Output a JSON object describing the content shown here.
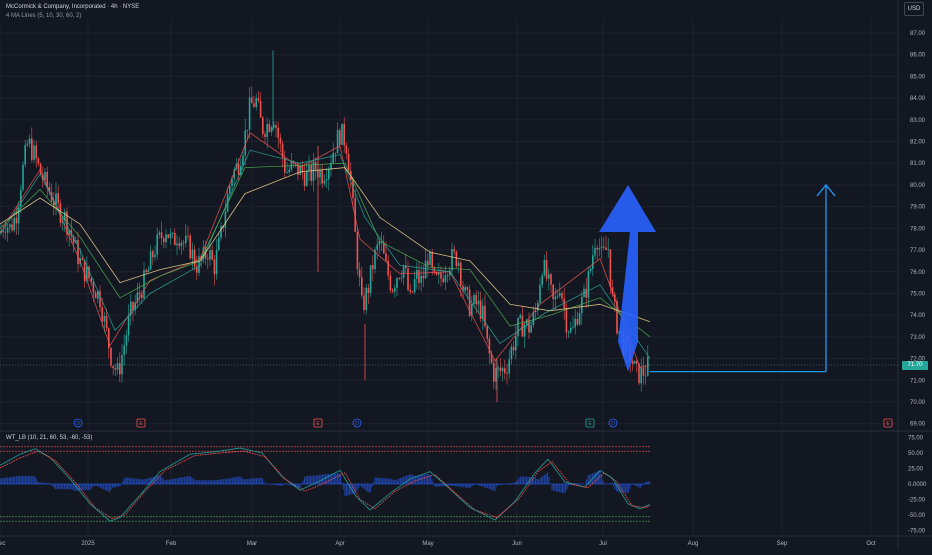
{
  "header": {
    "symbol_line": "McCormick & Company, Incorporated · 4h · NYSE",
    "indicator_line": "4 MA Lines (5, 10, 30, 60, 2)",
    "currency_button": "USD",
    "oscillator_line": "WT_LB (10, 21, 60, 53, -60, -53)"
  },
  "colors": {
    "background": "#131722",
    "up_candle": "#26a69a",
    "down_candle": "#ef5350",
    "arrow": "#2962ff",
    "target_line": "#2196f3",
    "ma_fast": "#ef5350",
    "ma_mid": "#26a69a",
    "ma_slow": "#f5d78e",
    "wt1": "#26a69a",
    "wt2": "#ef5350",
    "wt_hist": "#2962ff"
  },
  "last_price_label": "71.70",
  "chart_data": [
    {
      "type": "candlestick",
      "x_tick_labels": [
        "Dec",
        "2025",
        "Feb",
        "Mar",
        "Apr",
        "May",
        "Jun",
        "Jul",
        "Aug",
        "Sep",
        "Oct"
      ],
      "y_tick_labels": [
        "69.00",
        "70.00",
        "71.00",
        "72.00",
        "73.00",
        "74.00",
        "75.00",
        "76.00",
        "77.00",
        "78.00",
        "79.00",
        "80.00",
        "81.00",
        "82.00",
        "83.00",
        "84.00",
        "85.00",
        "86.00",
        "87.00"
      ],
      "ylim": [
        69,
        87.5
      ],
      "price_path": [
        [
          0,
          77.8
        ],
        [
          5,
          78.3
        ],
        [
          10,
          78.0
        ],
        [
          16,
          78.6
        ],
        [
          22,
          80.5
        ],
        [
          28,
          82.0
        ],
        [
          34,
          81.4
        ],
        [
          40,
          80.6
        ],
        [
          46,
          80.0
        ],
        [
          52,
          79.5
        ],
        [
          58,
          78.9
        ],
        [
          64,
          78.6
        ],
        [
          70,
          77.9
        ],
        [
          76,
          77.0
        ],
        [
          82,
          76.2
        ],
        [
          88,
          75.8
        ],
        [
          94,
          75.3
        ],
        [
          100,
          74.8
        ],
        [
          106,
          73.3
        ],
        [
          112,
          71.9
        ],
        [
          118,
          71.3
        ],
        [
          124,
          72.6
        ],
        [
          130,
          74.0
        ],
        [
          136,
          74.6
        ],
        [
          142,
          75.3
        ],
        [
          148,
          76.0
        ],
        [
          154,
          77.0
        ],
        [
          160,
          77.5
        ],
        [
          166,
          78.0
        ],
        [
          172,
          77.3
        ],
        [
          178,
          77.8
        ],
        [
          184,
          77.3
        ],
        [
          190,
          77.1
        ],
        [
          196,
          76.3
        ],
        [
          202,
          76.5
        ],
        [
          208,
          77.0
        ],
        [
          214,
          76.2
        ],
        [
          220,
          77.4
        ],
        [
          226,
          79.1
        ],
        [
          232,
          80.5
        ],
        [
          238,
          80.9
        ],
        [
          244,
          82.0
        ],
        [
          250,
          83.6
        ],
        [
          256,
          83.9
        ],
        [
          262,
          82.6
        ],
        [
          268,
          82.8
        ],
        [
          274,
          83.2
        ],
        [
          280,
          81.8
        ],
        [
          286,
          80.6
        ],
        [
          292,
          80.8
        ],
        [
          298,
          80.7
        ],
        [
          304,
          80.5
        ],
        [
          310,
          80.4
        ],
        [
          316,
          80.8
        ],
        [
          322,
          80.5
        ],
        [
          328,
          80.9
        ],
        [
          334,
          81.7
        ],
        [
          340,
          82.4
        ],
        [
          346,
          82.0
        ],
        [
          350,
          80.6
        ],
        [
          356,
          77.2
        ],
        [
          362,
          74.3
        ],
        [
          368,
          75.2
        ],
        [
          374,
          76.6
        ],
        [
          380,
          77.4
        ],
        [
          386,
          76.2
        ],
        [
          392,
          75.3
        ],
        [
          398,
          76.0
        ],
        [
          404,
          76.3
        ],
        [
          410,
          74.6
        ],
        [
          416,
          75.8
        ],
        [
          422,
          75.5
        ],
        [
          428,
          76.8
        ],
        [
          434,
          75.5
        ],
        [
          440,
          75.6
        ],
        [
          446,
          76.3
        ],
        [
          452,
          76.6
        ],
        [
          458,
          76.7
        ],
        [
          464,
          75.0
        ],
        [
          470,
          74.4
        ],
        [
          476,
          74.5
        ],
        [
          482,
          74.2
        ],
        [
          488,
          72.4
        ],
        [
          494,
          71.3
        ],
        [
          500,
          71.4
        ],
        [
          506,
          71.6
        ],
        [
          512,
          72.5
        ],
        [
          518,
          73.4
        ],
        [
          524,
          73.6
        ],
        [
          530,
          73.4
        ],
        [
          536,
          74.2
        ],
        [
          542,
          76.4
        ],
        [
          548,
          75.5
        ],
        [
          554,
          74.4
        ],
        [
          560,
          75.5
        ],
        [
          566,
          73.8
        ],
        [
          572,
          73.1
        ],
        [
          578,
          74.2
        ],
        [
          584,
          74.8
        ],
        [
          590,
          76.0
        ],
        [
          596,
          77.8
        ],
        [
          602,
          76.6
        ],
        [
          608,
          77.2
        ],
        [
          612,
          74.8
        ],
        [
          618,
          73.4
        ],
        [
          624,
          72.6
        ],
        [
          630,
          72.2
        ],
        [
          636,
          71.3
        ],
        [
          642,
          71.3
        ],
        [
          646,
          71.5
        ],
        [
          650,
          71.8
        ]
      ],
      "ma_fast": [
        [
          0,
          77.8
        ],
        [
          40,
          80.7
        ],
        [
          80,
          76.5
        ],
        [
          110,
          72.6
        ],
        [
          150,
          75.6
        ],
        [
          200,
          76.6
        ],
        [
          250,
          82.4
        ],
        [
          300,
          80.8
        ],
        [
          340,
          81.8
        ],
        [
          360,
          77.5
        ],
        [
          400,
          75.9
        ],
        [
          450,
          76.0
        ],
        [
          495,
          71.9
        ],
        [
          540,
          74.5
        ],
        [
          600,
          76.6
        ],
        [
          640,
          71.6
        ],
        [
          650,
          71.7
        ]
      ],
      "ma_mid": [
        [
          0,
          77.7
        ],
        [
          40,
          80.5
        ],
        [
          80,
          77.0
        ],
        [
          115,
          73.3
        ],
        [
          150,
          75.0
        ],
        [
          200,
          76.3
        ],
        [
          250,
          81.6
        ],
        [
          300,
          81.0
        ],
        [
          340,
          81.4
        ],
        [
          365,
          78.5
        ],
        [
          400,
          76.3
        ],
        [
          450,
          76.0
        ],
        [
          500,
          72.7
        ],
        [
          545,
          74.1
        ],
        [
          600,
          75.4
        ],
        [
          650,
          72.0
        ]
      ],
      "ma_slow": [
        [
          0,
          78.2
        ],
        [
          40,
          79.4
        ],
        [
          80,
          78.2
        ],
        [
          120,
          75.5
        ],
        [
          160,
          76.1
        ],
        [
          200,
          76.5
        ],
        [
          245,
          79.6
        ],
        [
          300,
          80.6
        ],
        [
          345,
          80.8
        ],
        [
          380,
          78.5
        ],
        [
          430,
          76.9
        ],
        [
          470,
          76.5
        ],
        [
          510,
          74.5
        ],
        [
          550,
          74.2
        ],
        [
          600,
          74.5
        ],
        [
          650,
          73.7
        ]
      ],
      "ma_green_long": [
        [
          0,
          78.0
        ],
        [
          40,
          79.8
        ],
        [
          80,
          77.6
        ],
        [
          120,
          74.8
        ],
        [
          160,
          75.8
        ],
        [
          200,
          76.5
        ],
        [
          245,
          80.8
        ],
        [
          300,
          80.9
        ],
        [
          345,
          81.0
        ],
        [
          380,
          77.4
        ],
        [
          430,
          76.2
        ],
        [
          470,
          76.1
        ],
        [
          510,
          73.5
        ],
        [
          550,
          74.0
        ],
        [
          600,
          74.8
        ],
        [
          650,
          73.0
        ]
      ],
      "arrow_target_price": 80.0,
      "arrow_base_price": 71.4,
      "target_base_price": 71.4,
      "event_markers": [
        {
          "x": 78,
          "label": "D"
        },
        {
          "x": 141,
          "label": "E"
        },
        {
          "x": 318,
          "label": "E"
        },
        {
          "x": 357,
          "label": "D"
        },
        {
          "x": 590,
          "label": "E"
        },
        {
          "x": 613,
          "label": "D"
        },
        {
          "x": 888,
          "label": "E"
        }
      ]
    },
    {
      "type": "line",
      "y_tick_labels": [
        "75.00",
        "50.00",
        "25.00",
        "0.0000",
        "-25.00",
        "-50.00",
        "-75.00"
      ],
      "ylim": [
        -88,
        78
      ],
      "levels": [
        60,
        53,
        0,
        -53,
        -60
      ],
      "wt1": [
        [
          0,
          30
        ],
        [
          20,
          48
        ],
        [
          35,
          57
        ],
        [
          50,
          43
        ],
        [
          70,
          8
        ],
        [
          90,
          -32
        ],
        [
          110,
          -60
        ],
        [
          120,
          -54
        ],
        [
          140,
          -18
        ],
        [
          160,
          20
        ],
        [
          190,
          48
        ],
        [
          215,
          52
        ],
        [
          240,
          58
        ],
        [
          262,
          50
        ],
        [
          282,
          12
        ],
        [
          300,
          -10
        ],
        [
          320,
          5
        ],
        [
          340,
          22
        ],
        [
          356,
          -20
        ],
        [
          370,
          -42
        ],
        [
          390,
          -15
        ],
        [
          410,
          8
        ],
        [
          430,
          20
        ],
        [
          450,
          -8
        ],
        [
          470,
          -38
        ],
        [
          495,
          -58
        ],
        [
          515,
          -28
        ],
        [
          535,
          18
        ],
        [
          548,
          40
        ],
        [
          565,
          3
        ],
        [
          585,
          -5
        ],
        [
          600,
          22
        ],
        [
          612,
          10
        ],
        [
          628,
          -32
        ],
        [
          640,
          -40
        ],
        [
          650,
          -33
        ]
      ],
      "wt2": [
        [
          0,
          26
        ],
        [
          20,
          42
        ],
        [
          38,
          53
        ],
        [
          55,
          38
        ],
        [
          75,
          3
        ],
        [
          95,
          -38
        ],
        [
          112,
          -56
        ],
        [
          125,
          -50
        ],
        [
          145,
          -12
        ],
        [
          165,
          22
        ],
        [
          195,
          46
        ],
        [
          220,
          50
        ],
        [
          244,
          53
        ],
        [
          265,
          44
        ],
        [
          285,
          8
        ],
        [
          305,
          -12
        ],
        [
          325,
          2
        ],
        [
          345,
          18
        ],
        [
          360,
          -25
        ],
        [
          375,
          -40
        ],
        [
          395,
          -12
        ],
        [
          415,
          5
        ],
        [
          435,
          15
        ],
        [
          455,
          -14
        ],
        [
          475,
          -42
        ],
        [
          497,
          -54
        ],
        [
          520,
          -22
        ],
        [
          538,
          20
        ],
        [
          552,
          36
        ],
        [
          570,
          0
        ],
        [
          588,
          -6
        ],
        [
          604,
          18
        ],
        [
          616,
          5
        ],
        [
          632,
          -35
        ],
        [
          645,
          -38
        ],
        [
          650,
          -35
        ]
      ]
    }
  ]
}
